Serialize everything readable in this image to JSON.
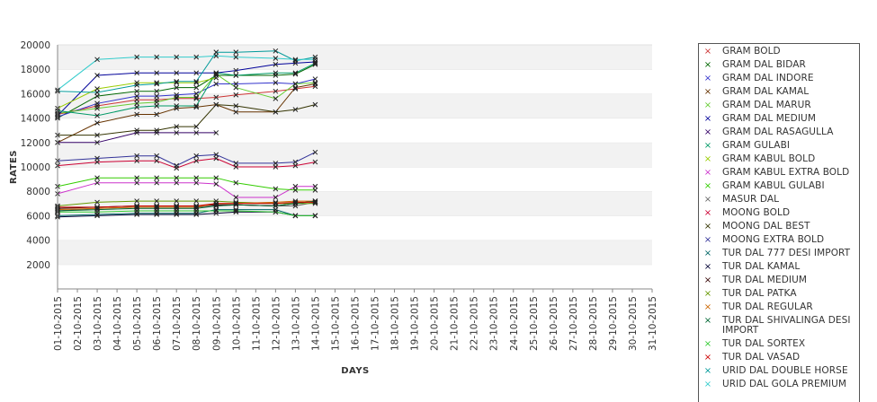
{
  "chart_data": {
    "type": "line",
    "xlabel": "DAYS",
    "ylabel": "RATES",
    "ylim": [
      0,
      20000
    ],
    "yticks": [
      2000,
      4000,
      6000,
      8000,
      10000,
      12000,
      14000,
      16000,
      18000,
      20000
    ],
    "grid": "horizontal alternating bands",
    "legend_position": "right",
    "categories": [
      "01-10-2015",
      "02-10-2015",
      "03-10-2015",
      "04-10-2015",
      "05-10-2015",
      "06-10-2015",
      "07-10-2015",
      "08-10-2015",
      "09-10-2015",
      "10-10-2015",
      "11-10-2015",
      "12-10-2015",
      "13-10-2015",
      "14-10-2015",
      "15-10-2015",
      "16-10-2015",
      "17-10-2015",
      "18-10-2015",
      "19-10-2015",
      "20-10-2015",
      "21-10-2015",
      "22-10-2015",
      "23-10-2015",
      "24-10-2015",
      "25-10-2015",
      "26-10-2015",
      "27-10-2015",
      "28-10-2015",
      "29-10-2015",
      "30-10-2015",
      "31-10-2015"
    ],
    "series": [
      {
        "name": "GRAM BOLD",
        "color": "#cc3333",
        "x": [
          "01-10-2015",
          "03-10-2015",
          "05-10-2015",
          "06-10-2015",
          "07-10-2015",
          "08-10-2015",
          "09-10-2015",
          "10-10-2015",
          "12-10-2015",
          "13-10-2015",
          "14-10-2015"
        ],
        "values": [
          14300,
          15000,
          15500,
          15500,
          15600,
          15600,
          15700,
          15900,
          16200,
          16400,
          16600
        ]
      },
      {
        "name": "GRAM DAL BIDAR",
        "color": "#006600",
        "x": [
          "01-10-2015",
          "03-10-2015",
          "05-10-2015",
          "06-10-2015",
          "07-10-2015",
          "08-10-2015",
          "09-10-2015",
          "10-10-2015",
          "12-10-2015",
          "13-10-2015",
          "14-10-2015"
        ],
        "values": [
          14000,
          15800,
          16200,
          16200,
          16500,
          16500,
          17500,
          17500,
          17500,
          17600,
          18400
        ]
      },
      {
        "name": "GRAM DAL INDORE",
        "color": "#3333cc",
        "x": [
          "01-10-2015",
          "03-10-2015",
          "05-10-2015",
          "06-10-2015",
          "07-10-2015",
          "08-10-2015",
          "09-10-2015",
          "10-10-2015",
          "12-10-2015",
          "13-10-2015",
          "14-10-2015"
        ],
        "values": [
          14100,
          15200,
          15800,
          15800,
          15900,
          16000,
          16800,
          16800,
          16900,
          16800,
          17200
        ]
      },
      {
        "name": "GRAM DAL KAMAL",
        "color": "#663300",
        "x": [
          "01-10-2015",
          "03-10-2015",
          "05-10-2015",
          "06-10-2015",
          "07-10-2015",
          "08-10-2015",
          "09-10-2015",
          "10-10-2015",
          "12-10-2015",
          "13-10-2015",
          "14-10-2015"
        ],
        "values": [
          12000,
          13600,
          14300,
          14300,
          14800,
          14900,
          15100,
          14500,
          14500,
          16500,
          16800
        ]
      },
      {
        "name": "GRAM DAL MARUR",
        "color": "#66cc33",
        "x": [
          "01-10-2015",
          "03-10-2015",
          "05-10-2015",
          "06-10-2015",
          "07-10-2015",
          "08-10-2015",
          "09-10-2015",
          "10-10-2015",
          "12-10-2015",
          "13-10-2015",
          "14-10-2015"
        ],
        "values": [
          14400,
          14800,
          15200,
          15300,
          15700,
          15700,
          17600,
          16500,
          15600,
          16800,
          16900
        ]
      },
      {
        "name": "GRAM DAL MEDIUM",
        "color": "#000099",
        "x": [
          "01-10-2015",
          "03-10-2015",
          "05-10-2015",
          "06-10-2015",
          "07-10-2015",
          "08-10-2015",
          "09-10-2015",
          "10-10-2015",
          "12-10-2015",
          "13-10-2015",
          "14-10-2015"
        ],
        "values": [
          14200,
          17500,
          17700,
          17700,
          17700,
          17700,
          17700,
          17900,
          18400,
          18500,
          18600
        ]
      },
      {
        "name": "GRAM DAL RASAGULLA",
        "color": "#330066",
        "x": [
          "01-10-2015",
          "03-10-2015",
          "05-10-2015",
          "06-10-2015",
          "07-10-2015",
          "08-10-2015",
          "09-10-2015"
        ],
        "values": [
          12000,
          12000,
          12800,
          12800,
          12800,
          12800,
          12800
        ]
      },
      {
        "name": "GRAM GULABI",
        "color": "#009966",
        "x": [
          "01-10-2015",
          "03-10-2015",
          "05-10-2015",
          "06-10-2015",
          "07-10-2015",
          "08-10-2015",
          "09-10-2015",
          "10-10-2015",
          "12-10-2015",
          "13-10-2015",
          "14-10-2015"
        ],
        "values": [
          14600,
          14200,
          14900,
          15000,
          15000,
          15000,
          17700,
          17500,
          17700,
          17700,
          18500
        ]
      },
      {
        "name": "GRAM KABUL BOLD",
        "color": "#99cc00",
        "x": [
          "01-10-2015",
          "03-10-2015",
          "05-10-2015",
          "06-10-2015",
          "07-10-2015",
          "08-10-2015",
          "09-10-2015"
        ],
        "values": [
          14800,
          16400,
          16900,
          16900,
          16900,
          16900,
          17300
        ]
      },
      {
        "name": "GRAM KABUL EXTRA BOLD",
        "color": "#cc33cc",
        "x": [
          "01-10-2015",
          "03-10-2015",
          "05-10-2015",
          "06-10-2015",
          "07-10-2015",
          "08-10-2015",
          "09-10-2015",
          "10-10-2015",
          "12-10-2015",
          "13-10-2015",
          "14-10-2015"
        ],
        "values": [
          7800,
          8700,
          8700,
          8700,
          8700,
          8700,
          8600,
          7500,
          7500,
          8400,
          8400
        ]
      },
      {
        "name": "GRAM KABUL GULABI",
        "color": "#33cc00",
        "x": [
          "01-10-2015",
          "03-10-2015",
          "05-10-2015",
          "06-10-2015",
          "07-10-2015",
          "08-10-2015",
          "09-10-2015",
          "10-10-2015",
          "12-10-2015",
          "13-10-2015",
          "14-10-2015"
        ],
        "values": [
          8400,
          9100,
          9100,
          9100,
          9100,
          9100,
          9100,
          8700,
          8200,
          8100,
          8100
        ]
      },
      {
        "name": "MASUR DAL",
        "color": "#666666",
        "x": [
          "01-10-2015",
          "03-10-2015",
          "05-10-2015",
          "06-10-2015",
          "07-10-2015",
          "08-10-2015",
          "09-10-2015",
          "10-10-2015",
          "12-10-2015",
          "13-10-2015",
          "14-10-2015"
        ],
        "values": [
          6400,
          6600,
          6700,
          6700,
          6700,
          6700,
          6800,
          6900,
          6800,
          6800,
          7100
        ]
      },
      {
        "name": "MOONG BOLD",
        "color": "#cc0033",
        "x": [
          "01-10-2015",
          "03-10-2015",
          "05-10-2015",
          "06-10-2015",
          "07-10-2015",
          "08-10-2015",
          "09-10-2015",
          "10-10-2015",
          "12-10-2015",
          "13-10-2015",
          "14-10-2015"
        ],
        "values": [
          10100,
          10400,
          10500,
          10500,
          9900,
          10500,
          10700,
          10000,
          10000,
          10100,
          10400
        ]
      },
      {
        "name": "MOONG DAL BEST",
        "color": "#333300",
        "x": [
          "01-10-2015",
          "03-10-2015",
          "05-10-2015",
          "06-10-2015",
          "07-10-2015",
          "08-10-2015",
          "09-10-2015",
          "10-10-2015",
          "12-10-2015",
          "13-10-2015",
          "14-10-2015"
        ],
        "values": [
          12600,
          12600,
          13000,
          13000,
          13300,
          13300,
          15100,
          15000,
          14500,
          14700,
          15100
        ]
      },
      {
        "name": "MOONG EXTRA BOLD",
        "color": "#333399",
        "x": [
          "01-10-2015",
          "03-10-2015",
          "05-10-2015",
          "06-10-2015",
          "07-10-2015",
          "08-10-2015",
          "09-10-2015",
          "10-10-2015",
          "12-10-2015",
          "13-10-2015",
          "14-10-2015"
        ],
        "values": [
          10500,
          10700,
          10900,
          10900,
          10100,
          10900,
          11000,
          10300,
          10300,
          10400,
          11200
        ]
      },
      {
        "name": "TUR DAL  777 DESI IMPORT",
        "color": "#006666",
        "x": [
          "01-10-2015",
          "03-10-2015",
          "05-10-2015",
          "06-10-2015",
          "07-10-2015",
          "08-10-2015",
          "09-10-2015",
          "10-10-2015",
          "12-10-2015",
          "13-10-2015",
          "14-10-2015"
        ],
        "values": [
          6000,
          6100,
          6200,
          6200,
          6200,
          6200,
          6500,
          6500,
          6500,
          6000,
          6000
        ]
      },
      {
        "name": "TUR DAL KAMAL",
        "color": "#000033",
        "x": [
          "01-10-2015",
          "03-10-2015",
          "05-10-2015",
          "06-10-2015",
          "07-10-2015",
          "08-10-2015",
          "09-10-2015",
          "10-10-2015",
          "12-10-2015",
          "13-10-2015",
          "14-10-2015"
        ],
        "values": [
          5900,
          6000,
          6100,
          6100,
          6100,
          6100,
          6200,
          6300,
          6300,
          6000,
          6000
        ]
      },
      {
        "name": "TUR DAL MEDIUM",
        "color": "#330000",
        "x": [
          "01-10-2015",
          "03-10-2015",
          "05-10-2015",
          "06-10-2015",
          "07-10-2015",
          "08-10-2015",
          "09-10-2015",
          "10-10-2015",
          "12-10-2015",
          "13-10-2015",
          "14-10-2015"
        ],
        "values": [
          6600,
          6700,
          6800,
          6800,
          6800,
          6800,
          6900,
          6900,
          6800,
          7000,
          7200
        ]
      },
      {
        "name": "TUR DAL PATKA",
        "color": "#669900",
        "x": [
          "01-10-2015",
          "03-10-2015",
          "05-10-2015",
          "06-10-2015",
          "07-10-2015",
          "08-10-2015",
          "09-10-2015",
          "10-10-2015",
          "12-10-2015",
          "13-10-2015",
          "14-10-2015"
        ],
        "values": [
          6800,
          7100,
          7200,
          7200,
          7200,
          7200,
          7200,
          7100,
          7000,
          7000,
          7000
        ]
      },
      {
        "name": "TUR DAL REGULAR",
        "color": "#cc6600",
        "x": [
          "01-10-2015",
          "03-10-2015",
          "05-10-2015",
          "06-10-2015",
          "07-10-2015",
          "08-10-2015",
          "09-10-2015",
          "10-10-2015",
          "12-10-2015",
          "13-10-2015",
          "14-10-2015"
        ],
        "values": [
          6500,
          6600,
          6700,
          6700,
          6700,
          6700,
          7000,
          7000,
          7100,
          7200,
          7200
        ]
      },
      {
        "name": "TUR DAL SHIVALINGA DESI IMPORT",
        "color": "#006633",
        "x": [
          "01-10-2015",
          "03-10-2015",
          "05-10-2015",
          "06-10-2015",
          "07-10-2015",
          "08-10-2015",
          "09-10-2015",
          "10-10-2015",
          "12-10-2015",
          "13-10-2015",
          "14-10-2015"
        ],
        "values": [
          6400,
          6500,
          6600,
          6600,
          6600,
          6600,
          6800,
          6900,
          6800,
          7000,
          7200
        ]
      },
      {
        "name": "TUR DAL SORTEX",
        "color": "#33cc33",
        "x": [
          "01-10-2015",
          "03-10-2015",
          "05-10-2015",
          "06-10-2015",
          "07-10-2015",
          "08-10-2015",
          "09-10-2015",
          "10-10-2015",
          "12-10-2015",
          "13-10-2015",
          "14-10-2015"
        ],
        "values": [
          6300,
          6300,
          6400,
          6400,
          6400,
          6400,
          6400,
          6400,
          6300,
          6000,
          6000
        ]
      },
      {
        "name": "TUR DAL VASAD",
        "color": "#cc0000",
        "x": [
          "01-10-2015",
          "03-10-2015",
          "05-10-2015",
          "06-10-2015",
          "07-10-2015",
          "08-10-2015",
          "09-10-2015",
          "10-10-2015",
          "12-10-2015",
          "13-10-2015",
          "14-10-2015"
        ],
        "values": [
          6700,
          6700,
          6800,
          6800,
          6800,
          6800,
          7000,
          7000,
          7000,
          7100,
          7100
        ]
      },
      {
        "name": "URID DAL DOUBLE HORSE",
        "color": "#009999",
        "x": [
          "01-10-2015",
          "03-10-2015",
          "05-10-2015",
          "06-10-2015",
          "07-10-2015",
          "08-10-2015",
          "09-10-2015",
          "10-10-2015",
          "12-10-2015",
          "13-10-2015",
          "14-10-2015"
        ],
        "values": [
          16200,
          16100,
          16700,
          16800,
          17000,
          17000,
          19400,
          19400,
          19500,
          18700,
          19000
        ]
      },
      {
        "name": "URID DAL GOLA PREMIUM",
        "color": "#33cccc",
        "x": [
          "01-10-2015",
          "03-10-2015",
          "05-10-2015",
          "06-10-2015",
          "07-10-2015",
          "08-10-2015",
          "09-10-2015",
          "10-10-2015",
          "12-10-2015",
          "13-10-2015",
          "14-10-2015"
        ],
        "values": [
          16300,
          18800,
          19000,
          19000,
          19000,
          19000,
          19100,
          19000,
          18900,
          18800,
          18800
        ]
      }
    ]
  },
  "legend_marker": "×"
}
